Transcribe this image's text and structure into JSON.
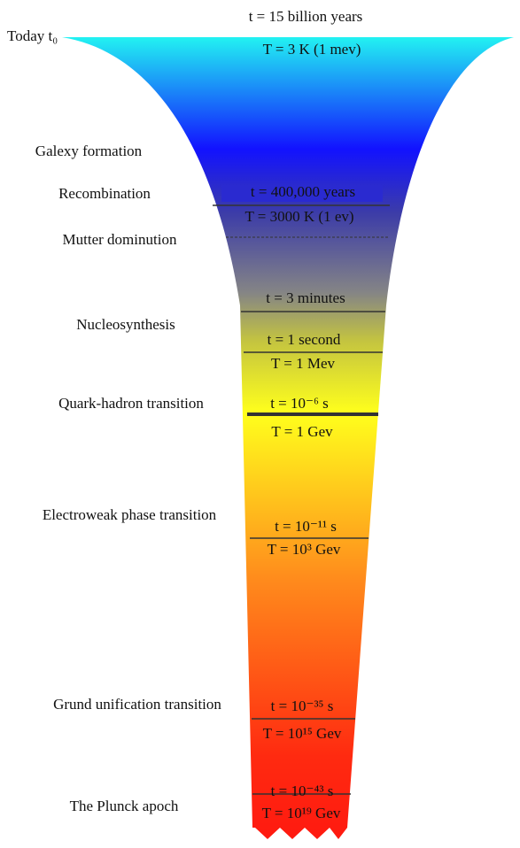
{
  "title_top": "t = 15 billion years",
  "eras": [
    "Today t₀",
    "Galexy formation",
    "Recombination",
    "Mutter dominution",
    "Nucleosynthesis",
    "Quark-hadron transition",
    "Electroweak phase transition",
    "Grund unification transition",
    "The Plunck apoch"
  ],
  "markers": [
    "T = 3 K (1 mev)",
    "t = 400,000 years",
    "T = 3000 K (1 ev)",
    "t = 3 minutes",
    "t = 1 second",
    "T = 1 Mev",
    "t = 10⁻⁶ s",
    "T = 1 Gev",
    "t = 10⁻¹¹ s",
    "T = 10³ Gev",
    "t = 10⁻³⁵ s",
    "T = 10¹⁵ Gev",
    "t = 10⁻⁴³ s",
    "T = 10¹⁹ Gev"
  ]
}
